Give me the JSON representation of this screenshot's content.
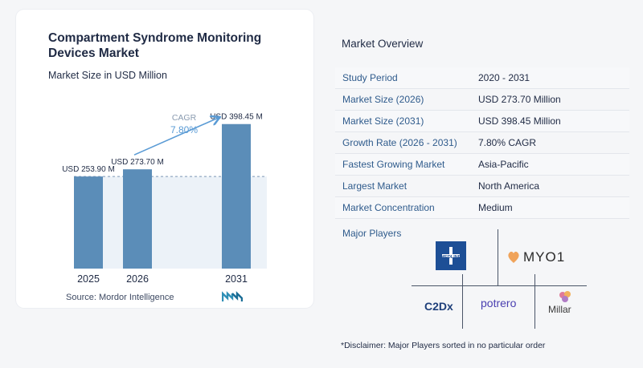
{
  "chart_data": {
    "type": "bar",
    "title": "Compartment Syndrome Monitoring Devices Market",
    "subtitle": "Market Size in USD Million",
    "categories": [
      "2025",
      "2026",
      "2031"
    ],
    "values": [
      253.9,
      273.7,
      398.45
    ],
    "data_labels": [
      "USD 253.90 M",
      "USD 273.70 M",
      "USD 398.45 M"
    ],
    "ylim": [
      0,
      420
    ],
    "cagr_label": "CAGR",
    "cagr_value": "7.80%",
    "bar_color": "#5b8db8",
    "accent_color": "#5a9bd5"
  },
  "source": "Source: Mordor Intelligence",
  "overview": {
    "title": "Market Overview",
    "rows": [
      {
        "label": "Study Period",
        "value": "2020 - 2031"
      },
      {
        "label": "Market Size (2026)",
        "value": "USD 273.70 Million"
      },
      {
        "label": "Market Size (2031)",
        "value": "USD 398.45 Million"
      },
      {
        "label": "Growth Rate (2026 - 2031)",
        "value": "7.80% CAGR"
      },
      {
        "label": "Fastest Growing Market",
        "value": "Asia-Pacific"
      },
      {
        "label": "Largest Market",
        "value": "North America"
      },
      {
        "label": "Market Concentration",
        "value": "Medium"
      }
    ]
  },
  "players": {
    "title": "Major Players",
    "items": [
      {
        "name": "MEDLINE",
        "icon": "medline-logo"
      },
      {
        "name": "MYO1",
        "icon": "myo1-logo"
      },
      {
        "name": "C2Dx",
        "icon": "c2dx-logo"
      },
      {
        "name": "potrero",
        "icon": "potrero-logo"
      },
      {
        "name": "Millar",
        "icon": "millar-logo"
      }
    ]
  },
  "disclaimer": "*Disclaimer: Major Players sorted in no particular order"
}
